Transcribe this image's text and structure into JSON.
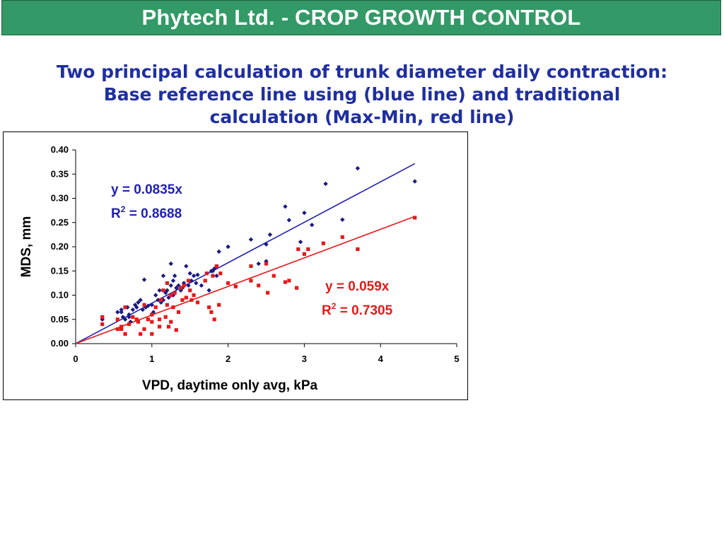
{
  "header": {
    "title": "Phytech Ltd. - CROP GROWTH CONTROL"
  },
  "subtitle": {
    "line1": "Two principal calculation of trunk diameter daily contraction:",
    "line2": "Base reference line using (blue line) and traditional",
    "line3": "calculation (Max-Min, red line)"
  },
  "colors": {
    "banner": "#339966",
    "subtitle": "#1f2fa0",
    "blue": "#1f1fb3",
    "red": "#e31a1a"
  },
  "chart_data": {
    "type": "scatter",
    "xlabel": "VPD, daytime only avg, kPa",
    "ylabel": "MDS, mm",
    "xlim": [
      0,
      5
    ],
    "ylim": [
      0,
      0.4
    ],
    "x_ticks": [
      "0",
      "1",
      "2",
      "3",
      "4",
      "5"
    ],
    "y_ticks": [
      "0.00",
      "0.05",
      "0.10",
      "0.15",
      "0.20",
      "0.25",
      "0.30",
      "0.35",
      "0.40"
    ],
    "grid": false,
    "series": [
      {
        "color": "#1f1fb3",
        "marker": "diamond",
        "trendline": {
          "slope": 0.0835,
          "x_end": 4.45
        },
        "equation": "y = 0.0835x",
        "r2_label": "R",
        "r2_sup": "2",
        "r2_value": " = 0.8688",
        "points": [
          [
            0.35,
            0.05
          ],
          [
            0.55,
            0.065
          ],
          [
            0.6,
            0.07
          ],
          [
            0.62,
            0.055
          ],
          [
            0.65,
            0.05
          ],
          [
            0.68,
            0.075
          ],
          [
            0.7,
            0.06
          ],
          [
            0.72,
            0.045
          ],
          [
            0.75,
            0.07
          ],
          [
            0.78,
            0.08
          ],
          [
            0.8,
            0.075
          ],
          [
            0.82,
            0.085
          ],
          [
            0.85,
            0.09
          ],
          [
            0.88,
            0.07
          ],
          [
            0.9,
            0.132
          ],
          [
            0.92,
            0.075
          ],
          [
            0.95,
            0.078
          ],
          [
            1.0,
            0.08
          ],
          [
            1.02,
            0.065
          ],
          [
            1.05,
            0.1
          ],
          [
            1.08,
            0.09
          ],
          [
            1.1,
            0.11
          ],
          [
            1.12,
            0.085
          ],
          [
            1.15,
            0.14
          ],
          [
            1.15,
            0.09
          ],
          [
            1.18,
            0.105
          ],
          [
            1.2,
            0.11
          ],
          [
            1.22,
            0.095
          ],
          [
            1.25,
            0.12
          ],
          [
            1.25,
            0.165
          ],
          [
            1.28,
            0.13
          ],
          [
            1.28,
            0.1
          ],
          [
            1.3,
            0.14
          ],
          [
            1.32,
            0.115
          ],
          [
            1.35,
            0.12
          ],
          [
            1.38,
            0.11
          ],
          [
            1.4,
            0.115
          ],
          [
            1.42,
            0.125
          ],
          [
            1.45,
            0.16
          ],
          [
            1.48,
            0.12
          ],
          [
            1.5,
            0.145
          ],
          [
            1.52,
            0.13
          ],
          [
            1.55,
            0.14
          ],
          [
            1.58,
            0.125
          ],
          [
            1.6,
            0.142
          ],
          [
            1.65,
            0.12
          ],
          [
            1.75,
            0.11
          ],
          [
            1.78,
            0.15
          ],
          [
            1.8,
            0.15
          ],
          [
            1.82,
            0.155
          ],
          [
            1.85,
            0.14
          ],
          [
            1.88,
            0.19
          ],
          [
            2.0,
            0.2
          ],
          [
            2.3,
            0.215
          ],
          [
            2.4,
            0.165
          ],
          [
            2.5,
            0.205
          ],
          [
            2.55,
            0.225
          ],
          [
            2.5,
            0.17
          ],
          [
            2.75,
            0.283
          ],
          [
            2.8,
            0.255
          ],
          [
            2.95,
            0.21
          ],
          [
            3.0,
            0.27
          ],
          [
            3.1,
            0.245
          ],
          [
            3.28,
            0.33
          ],
          [
            3.5,
            0.256
          ],
          [
            3.7,
            0.362
          ],
          [
            4.45,
            0.335
          ],
          [
            0.6,
            0.065
          ],
          [
            0.7,
            0.055
          ],
          [
            1.0,
            0.06
          ]
        ]
      },
      {
        "color": "#e31a1a",
        "marker": "square",
        "trendline": {
          "slope": 0.059,
          "x_end": 4.45
        },
        "equation": "y = 0.059x",
        "r2_label": "R",
        "r2_sup": "2",
        "r2_value": " = 0.7305",
        "points": [
          [
            0.35,
            0.04
          ],
          [
            0.35,
            0.055
          ],
          [
            0.55,
            0.03
          ],
          [
            0.55,
            0.05
          ],
          [
            0.6,
            0.035
          ],
          [
            0.65,
            0.02
          ],
          [
            0.65,
            0.075
          ],
          [
            0.7,
            0.04
          ],
          [
            0.75,
            0.055
          ],
          [
            0.8,
            0.05
          ],
          [
            0.82,
            0.045
          ],
          [
            0.85,
            0.02
          ],
          [
            0.9,
            0.03
          ],
          [
            0.9,
            0.08
          ],
          [
            0.95,
            0.05
          ],
          [
            1.0,
            0.02
          ],
          [
            1.0,
            0.045
          ],
          [
            1.05,
            0.075
          ],
          [
            1.1,
            0.035
          ],
          [
            1.1,
            0.05
          ],
          [
            1.12,
            0.09
          ],
          [
            1.15,
            0.11
          ],
          [
            1.18,
            0.055
          ],
          [
            1.2,
            0.08
          ],
          [
            1.2,
            0.125
          ],
          [
            1.22,
            0.035
          ],
          [
            1.25,
            0.045
          ],
          [
            1.25,
            0.1
          ],
          [
            1.28,
            0.075
          ],
          [
            1.3,
            0.105
          ],
          [
            1.32,
            0.028
          ],
          [
            1.35,
            0.065
          ],
          [
            1.38,
            0.115
          ],
          [
            1.4,
            0.09
          ],
          [
            1.42,
            0.12
          ],
          [
            1.45,
            0.095
          ],
          [
            1.48,
            0.13
          ],
          [
            1.5,
            0.11
          ],
          [
            1.52,
            0.09
          ],
          [
            1.55,
            0.1
          ],
          [
            1.6,
            0.085
          ],
          [
            1.7,
            0.13
          ],
          [
            1.72,
            0.145
          ],
          [
            1.75,
            0.075
          ],
          [
            1.78,
            0.065
          ],
          [
            1.8,
            0.14
          ],
          [
            1.82,
            0.05
          ],
          [
            1.85,
            0.16
          ],
          [
            1.88,
            0.08
          ],
          [
            1.9,
            0.145
          ],
          [
            2.0,
            0.125
          ],
          [
            2.1,
            0.118
          ],
          [
            2.3,
            0.13
          ],
          [
            2.3,
            0.16
          ],
          [
            2.4,
            0.12
          ],
          [
            2.5,
            0.165
          ],
          [
            2.52,
            0.105
          ],
          [
            2.6,
            0.14
          ],
          [
            2.75,
            0.127
          ],
          [
            2.8,
            0.13
          ],
          [
            2.9,
            0.115
          ],
          [
            2.92,
            0.195
          ],
          [
            3.0,
            0.185
          ],
          [
            3.05,
            0.195
          ],
          [
            3.25,
            0.207
          ],
          [
            3.5,
            0.22
          ],
          [
            3.7,
            0.195
          ],
          [
            4.45,
            0.26
          ],
          [
            0.6,
            0.03
          ],
          [
            1.0,
            0.06
          ]
        ]
      }
    ]
  }
}
